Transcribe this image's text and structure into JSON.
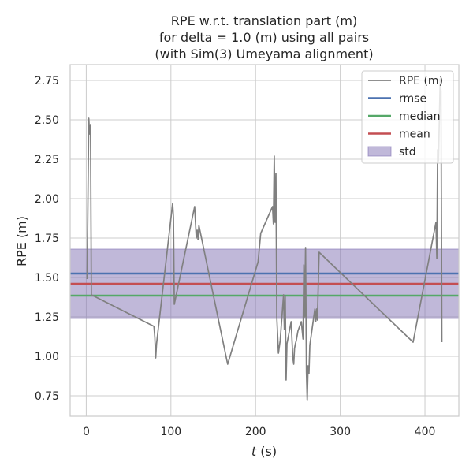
{
  "chart_data": {
    "type": "line",
    "title_lines": [
      "RPE w.r.t. translation part (m)",
      "for delta = 1.0 (m) using all pairs",
      "(with Sim(3) Umeyama alignment)"
    ],
    "xlabel_italic": "t",
    "xlabel_rest": " (s)",
    "ylabel": "RPE (m)",
    "xlim": [
      -19,
      440
    ],
    "ylim": [
      0.62,
      2.85
    ],
    "xticks": [
      0,
      100,
      200,
      300,
      400
    ],
    "xtick_labels": [
      "0",
      "100",
      "200",
      "300",
      "400"
    ],
    "yticks": [
      0.75,
      1.0,
      1.25,
      1.5,
      1.75,
      2.0,
      2.25,
      2.5,
      2.75
    ],
    "ytick_labels": [
      "0.75",
      "1.00",
      "1.25",
      "1.50",
      "1.75",
      "2.00",
      "2.25",
      "2.50",
      "2.75"
    ],
    "grid": true,
    "legend_position": "top-right",
    "series": [
      {
        "name": "RPE (m)",
        "color": "#808080",
        "x": [
          1,
          3,
          4,
          5,
          6,
          80,
          81,
          82,
          83,
          102,
          103,
          104,
          128,
          130,
          131,
          132,
          133,
          167,
          203,
          206,
          220,
          221,
          222,
          223,
          224,
          225,
          227,
          229,
          233,
          234,
          235,
          236,
          237,
          242,
          244,
          245,
          246,
          247,
          248,
          250,
          254,
          256,
          257,
          258,
          259,
          260,
          261,
          262,
          263,
          264,
          270,
          271,
          272,
          273,
          275,
          386,
          413,
          414,
          415,
          416,
          418,
          419,
          420
        ],
        "y": [
          1.49,
          2.51,
          2.41,
          2.47,
          1.39,
          1.19,
          1.12,
          0.99,
          1.08,
          1.97,
          1.88,
          1.33,
          1.95,
          1.75,
          1.8,
          1.74,
          1.83,
          0.95,
          1.6,
          1.78,
          1.95,
          1.84,
          2.27,
          1.85,
          2.16,
          1.25,
          1.02,
          1.1,
          1.39,
          1.17,
          1.38,
          0.85,
          1.08,
          1.22,
          0.99,
          0.95,
          1.05,
          1.08,
          1.1,
          1.16,
          1.22,
          1.11,
          1.58,
          1.25,
          1.69,
          0.9,
          0.72,
          0.94,
          0.89,
          1.07,
          1.3,
          1.22,
          1.3,
          1.23,
          1.66,
          1.09,
          1.85,
          1.62,
          2.31,
          2.24,
          2.76,
          2.68,
          1.09
        ]
      },
      {
        "name": "rmse",
        "color": "#4c72b0",
        "value": 1.525
      },
      {
        "name": "median",
        "color": "#55a868",
        "value": 1.385
      },
      {
        "name": "mean",
        "color": "#c44e52",
        "value": 1.46
      },
      {
        "name": "std",
        "color": "#8172b3",
        "range": [
          1.24,
          1.68
        ]
      }
    ]
  }
}
